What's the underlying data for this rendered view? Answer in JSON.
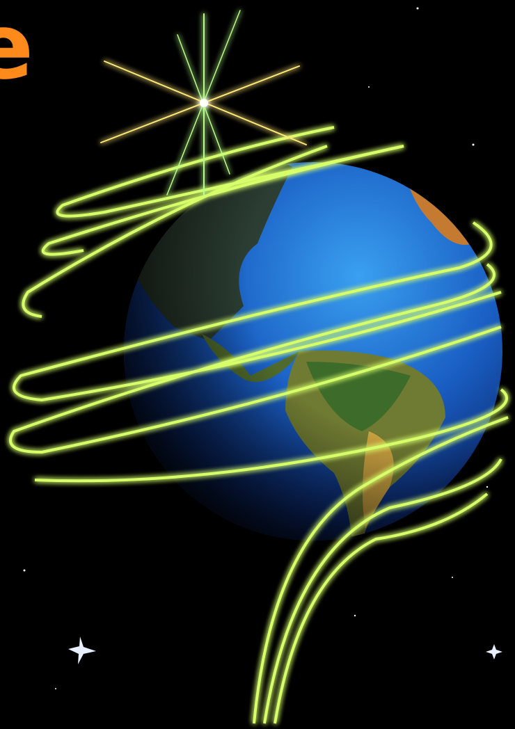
{
  "heading": {
    "text": "e"
  }
}
